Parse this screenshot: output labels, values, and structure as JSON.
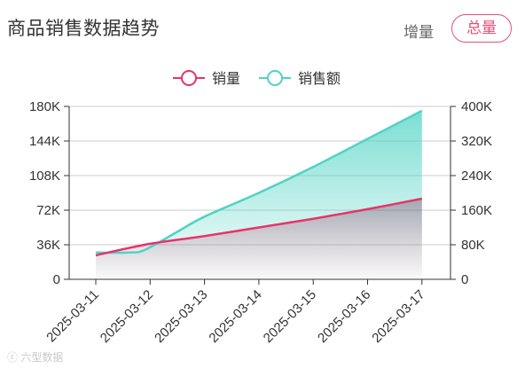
{
  "header": {
    "title": "商品销售数据趋势",
    "toggle_increment": "增量",
    "toggle_total": "总量"
  },
  "watermark": "ⓒ 六型数据",
  "colors": {
    "sales_volume": "#e8336a",
    "sales_amount": "#4fd3c4",
    "grid": "#cccccc",
    "axis": "#333333"
  },
  "chart_data": {
    "type": "line",
    "title": "商品销售数据趋势",
    "categories": [
      "2025-03-11",
      "2025-03-12",
      "2025-03-13",
      "2025-03-14",
      "2025-03-15",
      "2025-03-16",
      "2025-03-17"
    ],
    "x_days": [
      0,
      1,
      2,
      3,
      4,
      5,
      6
    ],
    "series": [
      {
        "name": "销量",
        "axis": "left",
        "x": [
          0,
          1,
          2,
          3,
          4,
          5,
          6
        ],
        "values": [
          25000,
          37000,
          45000,
          54000,
          63000,
          73000,
          84000
        ]
      },
      {
        "name": "销售额",
        "axis": "right",
        "x": [
          0,
          0.6,
          0.9,
          1.5,
          2,
          3,
          4,
          5,
          6
        ],
        "values": [
          62000,
          62000,
          68000,
          110000,
          145000,
          200000,
          260000,
          325000,
          390000
        ]
      }
    ],
    "y_left": {
      "ticks": [
        "0",
        "36K",
        "72K",
        "108K",
        "144K",
        "180K"
      ],
      "min": 0,
      "max": 180000
    },
    "y_right": {
      "ticks": [
        "0",
        "80K",
        "160K",
        "240K",
        "320K",
        "400K"
      ],
      "min": 0,
      "max": 400000
    },
    "legend": [
      "销量",
      "销售额"
    ],
    "legend_position": "top-center",
    "grid": true
  }
}
